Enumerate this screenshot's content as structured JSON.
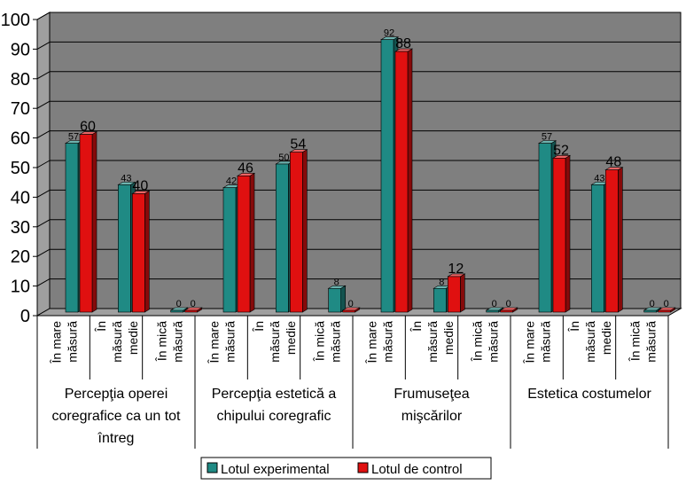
{
  "chart_data": {
    "type": "bar",
    "ylim": [
      0,
      100
    ],
    "y_ticks": [
      "0",
      "10",
      "20",
      "30",
      "40",
      "50",
      "60",
      "70",
      "80",
      "90",
      "100"
    ],
    "grid": true,
    "legend_position": "bottom-center",
    "colors": {
      "plot_bg": "#7f7f7f",
      "series_1": "#1f8a84",
      "series_2": "#e01010"
    },
    "groups": [
      {
        "lines": [
          "Percepţia operei",
          "coregrafice ca un tot",
          "întreg"
        ]
      },
      {
        "lines": [
          "Percepţia estetică a",
          "chipului coregrafic"
        ]
      },
      {
        "lines": [
          "Frumuseţea",
          "mişcărilor"
        ]
      },
      {
        "lines": [
          "Estetica costumelor"
        ]
      }
    ],
    "categories": [
      {
        "lines": [
          "În mare",
          "măsură"
        ]
      },
      {
        "lines": [
          "În",
          "măsură",
          "medie"
        ]
      },
      {
        "lines": [
          "În mică",
          "măsură"
        ]
      },
      {
        "lines": [
          "În mare",
          "măsură"
        ]
      },
      {
        "lines": [
          "În",
          "măsură",
          "medie"
        ]
      },
      {
        "lines": [
          "În mică",
          "măsură"
        ]
      },
      {
        "lines": [
          "În mare",
          "măsură"
        ]
      },
      {
        "lines": [
          "În",
          "măsură",
          "medie"
        ]
      },
      {
        "lines": [
          "În mică",
          "măsură"
        ]
      },
      {
        "lines": [
          "În mare",
          "măsură"
        ]
      },
      {
        "lines": [
          "În",
          "măsură",
          "medie"
        ]
      },
      {
        "lines": [
          "În mică",
          "măsură"
        ]
      }
    ],
    "series": [
      {
        "name": "Lotul experimental",
        "values": [
          57,
          43,
          0,
          42,
          50,
          8,
          92,
          8,
          0,
          57,
          43,
          0
        ]
      },
      {
        "name": "Lotul de control",
        "values": [
          60,
          40,
          0,
          46,
          54,
          0,
          88,
          12,
          0,
          52,
          48,
          0
        ]
      }
    ]
  }
}
